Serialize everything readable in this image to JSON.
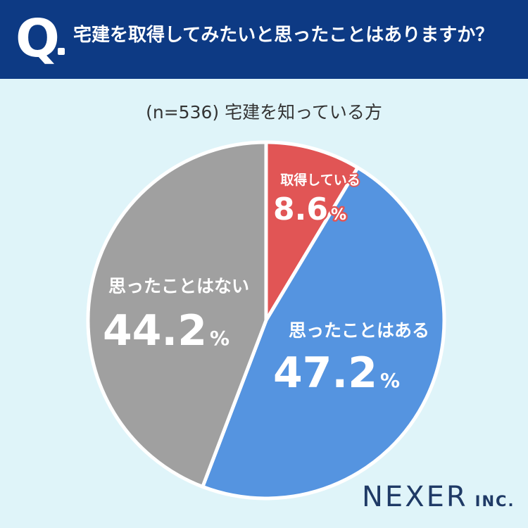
{
  "header": {
    "q_letter": "Q",
    "question": "宅建を取得してみたいと思ったことはありますか？"
  },
  "subtitle": "(n=536) 宅建を知っている方",
  "chart_data": {
    "type": "pie",
    "sample_size": 536,
    "slices": [
      {
        "label": "取得している",
        "value": 8.6,
        "value_text": "8.6",
        "unit": "%",
        "color": "#e15555"
      },
      {
        "label": "思ったことはある",
        "value": 47.2,
        "value_text": "47.2",
        "unit": "%",
        "color": "#5594e0"
      },
      {
        "label": "思ったことはない",
        "value": 44.2,
        "value_text": "44.2",
        "unit": "%",
        "color": "#a0a0a0"
      }
    ]
  },
  "brand": {
    "name": "NEXER",
    "suffix": "INC."
  },
  "colors": {
    "header_bg": "#0d3a84",
    "page_bg": "#dff4f9",
    "slice_border": "#ffffff"
  }
}
